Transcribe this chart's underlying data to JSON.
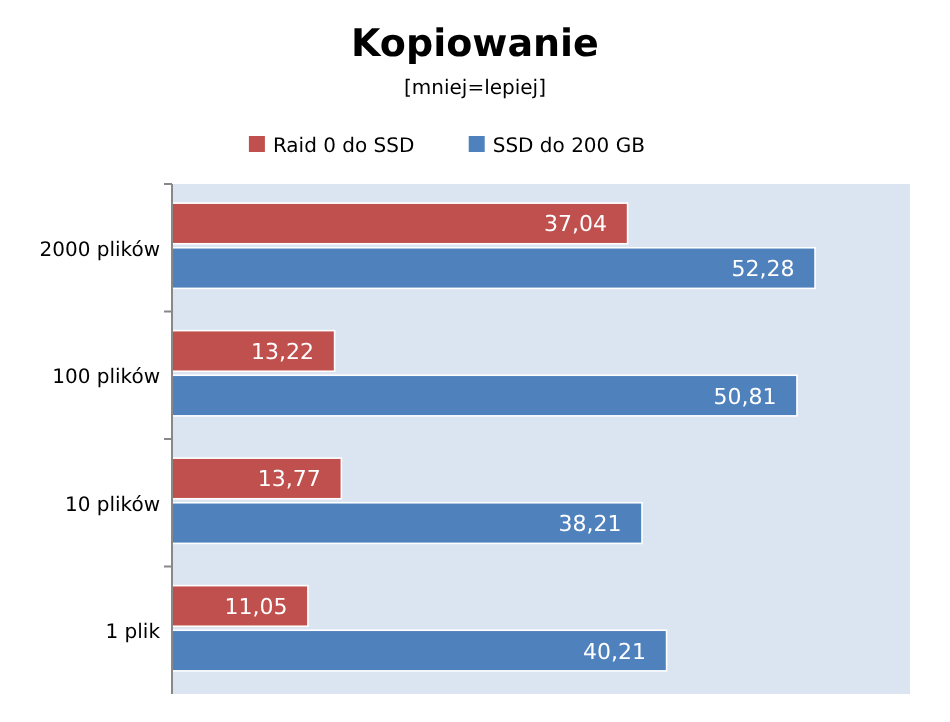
{
  "chart_data": {
    "type": "bar",
    "orientation": "horizontal",
    "title": "Kopiowanie",
    "subtitle": "[mniej=lepiej]",
    "categories": [
      "2000 plików",
      "100 plików",
      "10 plików",
      "1 plik"
    ],
    "series": [
      {
        "name": "Raid 0 do SSD",
        "color": "#c0504d",
        "values": [
          37.04,
          13.22,
          13.77,
          11.05
        ],
        "value_labels": [
          "37,04",
          "13,22",
          "13,77",
          "11,05"
        ]
      },
      {
        "name": "SSD do  200 GB",
        "color": "#4f81bd",
        "values": [
          52.28,
          50.81,
          38.21,
          40.21
        ],
        "value_labels": [
          "52,28",
          "50,81",
          "38,21",
          "40,21"
        ]
      }
    ],
    "xlim": [
      0,
      60
    ],
    "tick_labels": "y",
    "legend": "top",
    "grid": false
  }
}
